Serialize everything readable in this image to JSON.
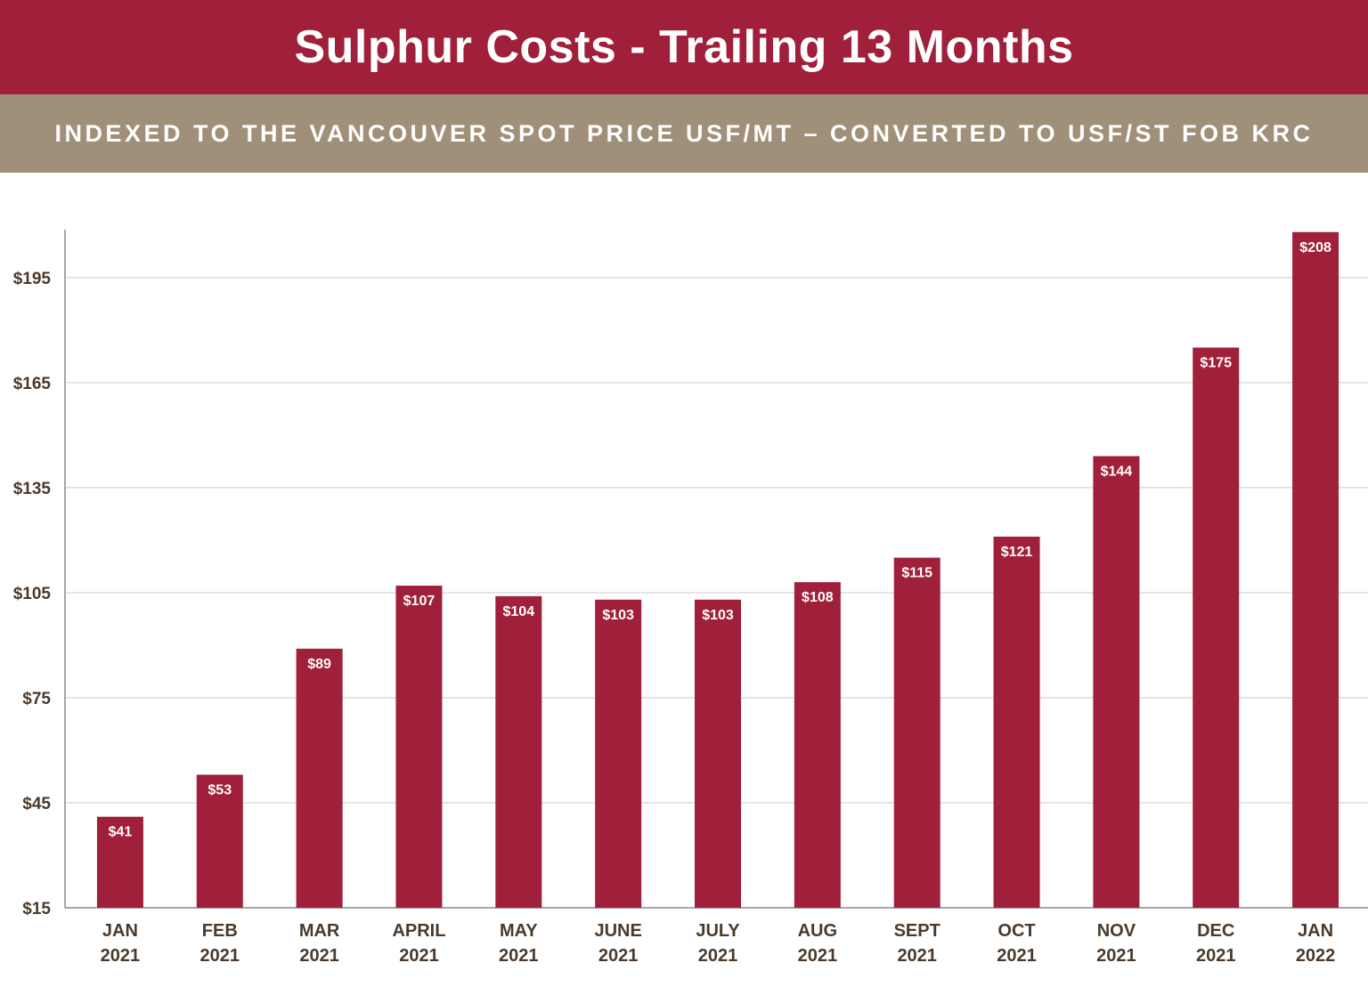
{
  "colors": {
    "title_bg": "#a01f3a",
    "subtitle_bg": "#a09079",
    "bar": "#a01f3a",
    "grid": "#c9c9c9",
    "axis": "#8a8a8a",
    "tick_text": "#4b3a2b",
    "data_label": "#ffffff"
  },
  "chart_data": {
    "type": "bar",
    "title": "Sulphur Costs - Trailing 13 Months",
    "subtitle": "INDEXED TO THE VANCOUVER SPOT PRICE USF/MT – CONVERTED TO USF/ST FOB KRC",
    "categories": [
      [
        "JAN",
        "2021"
      ],
      [
        "FEB",
        "2021"
      ],
      [
        "MAR",
        "2021"
      ],
      [
        "APRIL",
        "2021"
      ],
      [
        "MAY",
        "2021"
      ],
      [
        "JUNE",
        "2021"
      ],
      [
        "JULY",
        "2021"
      ],
      [
        "AUG",
        "2021"
      ],
      [
        "SEPT",
        "2021"
      ],
      [
        "OCT",
        "2021"
      ],
      [
        "NOV",
        "2021"
      ],
      [
        "DEC",
        "2021"
      ],
      [
        "JAN",
        "2022"
      ]
    ],
    "values": [
      41,
      53,
      89,
      107,
      104,
      103,
      103,
      108,
      115,
      121,
      144,
      175,
      208
    ],
    "value_labels": [
      "$41",
      "$53",
      "$89",
      "$107",
      "$104",
      "$103",
      "$103",
      "$108",
      "$115",
      "$121",
      "$144",
      "$175",
      "$208"
    ],
    "y_ticks": [
      15,
      45,
      75,
      105,
      135,
      165,
      195
    ],
    "y_tick_labels": [
      "$15",
      "$45",
      "$75",
      "$105",
      "$135",
      "$165",
      "$195"
    ],
    "ylim": [
      15,
      208
    ],
    "grid": true,
    "legend": "none"
  }
}
